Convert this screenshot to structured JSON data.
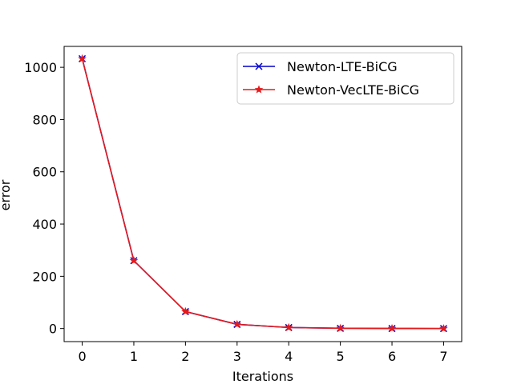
{
  "chart_data": {
    "type": "line",
    "xlabel": "Iterations",
    "ylabel": "error",
    "x": [
      0,
      1,
      2,
      3,
      4,
      5,
      6,
      7
    ],
    "xlim": [
      -0.35,
      7.35
    ],
    "ylim": [
      -50,
      1080
    ],
    "xticks": [
      0,
      1,
      2,
      3,
      4,
      5,
      6,
      7
    ],
    "yticks": [
      0,
      200,
      400,
      600,
      800,
      1000
    ],
    "grid": false,
    "legend_position": "upper right",
    "series": [
      {
        "name": "Newton-LTE-BiCG",
        "color": "#0000cc",
        "marker": "x",
        "values": [
          1033,
          260,
          65,
          16,
          4,
          1,
          0.3,
          0.1
        ]
      },
      {
        "name": "Newton-VecLTE-BiCG",
        "color": "#e41a1c",
        "marker": "star",
        "values": [
          1033,
          260,
          65,
          16,
          4,
          1,
          0.3,
          0.1
        ]
      }
    ]
  }
}
